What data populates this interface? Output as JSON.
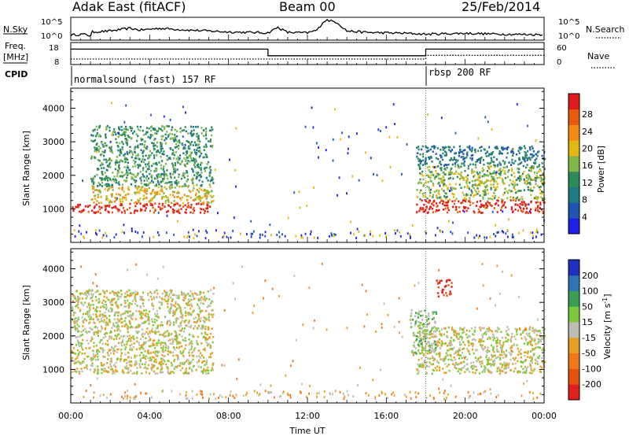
{
  "header": {
    "station": "Adak East (fitACF)",
    "beam": "Beam 00",
    "date": "25/Feb/2014"
  },
  "labels": {
    "nsky": "N.Sky",
    "nsearch": "N.Search",
    "freq": "Freq.",
    "mhz": "[MHz]",
    "nave": "Nave",
    "cpid": "CPID",
    "noise_ticks": [
      "10^5",
      "10^0"
    ],
    "freq_ticks": [
      "18",
      "8"
    ],
    "nave_ticks": [
      "60",
      "0"
    ],
    "cpid_programs": [
      "normalsound (fast) 157 RF",
      "rbsp 200 RF"
    ]
  },
  "colors": {
    "power": [
      "#1e1ee6",
      "#2155b4",
      "#1f7a82",
      "#2f8a5a",
      "#7fb84a",
      "#e3b814",
      "#f28a14",
      "#e85a0e",
      "#e01a1a"
    ],
    "velocity": [
      "#1f2fbe",
      "#2d74b0",
      "#3a9e52",
      "#7fca3c",
      "#bdbdb2",
      "#e8a020",
      "#f07818",
      "#e85010",
      "#e0201c"
    ]
  },
  "chart_data": [
    {
      "type": "line",
      "title": "N.Sky / N.Search noise",
      "ylim": [
        "10^0",
        "10^5"
      ],
      "series": [
        {
          "name": "N.Sky",
          "x": [
            0,
            0.6,
            1.0,
            1.1,
            2.0,
            3.0,
            3.5,
            4.5,
            6.0,
            7.0,
            8.0,
            10.0,
            10.5,
            11.0,
            12.0,
            12.5,
            12.8,
            13.0,
            13.2,
            13.5,
            14.0,
            15.0,
            16.0,
            17.0,
            18.0,
            20.0,
            22.0,
            24.0
          ],
          "y": [
            1.1,
            1.3,
            1.0,
            1.8,
            2.0,
            2.6,
            2.2,
            2.6,
            2.2,
            2.0,
            1.8,
            1.6,
            2.8,
            1.7,
            1.6,
            2.2,
            4.0,
            4.4,
            4.2,
            3.9,
            2.0,
            1.7,
            1.6,
            1.5,
            1.3,
            1.5,
            1.3,
            1.2
          ]
        }
      ]
    },
    {
      "type": "line",
      "title": "Frequency and Nave",
      "ylim_freq": [
        8,
        18
      ],
      "ylim_nave": [
        0,
        60
      ],
      "series": [
        {
          "name": "Freq.",
          "x": [
            0,
            10,
            10,
            18,
            18,
            24
          ],
          "y": [
            15,
            15,
            12,
            12,
            15,
            15
          ]
        },
        {
          "name": "Nave",
          "x": [
            0,
            10,
            10,
            18,
            18,
            24
          ],
          "y": [
            15,
            15,
            15,
            15,
            25,
            25
          ]
        }
      ]
    },
    {
      "type": "heatmap",
      "title": "Power",
      "xlabel": "",
      "ylabel": "Slant Range [km]",
      "xlim": [
        0,
        24
      ],
      "ylim": [
        0,
        4600
      ],
      "x_ticks": [
        "00:00",
        "04:00",
        "08:00",
        "12:00",
        "16:00",
        "20:00",
        "00:00"
      ],
      "y_ticks": [
        1000,
        2000,
        3000,
        4000
      ],
      "colorbar": {
        "label": "Power [dB]",
        "ticks": [
          4,
          8,
          12,
          16,
          20,
          24,
          28
        ]
      },
      "echo_bands": [
        {
          "t0": 0.0,
          "t1": 7.2,
          "r0": 900,
          "r1": 1200,
          "level": 8
        },
        {
          "t0": 1.0,
          "t1": 7.2,
          "r0": 1200,
          "r1": 1700,
          "level": 5
        },
        {
          "t0": 1.0,
          "t1": 7.2,
          "r0": 1700,
          "r1": 3500,
          "level": 3
        },
        {
          "t0": 17.5,
          "t1": 24.0,
          "r0": 900,
          "r1": 1300,
          "level": 8
        },
        {
          "t0": 17.5,
          "t1": 24.0,
          "r0": 1300,
          "r1": 2300,
          "level": 4
        },
        {
          "t0": 17.5,
          "t1": 24.0,
          "r0": 2300,
          "r1": 2900,
          "level": 2
        }
      ]
    },
    {
      "type": "heatmap",
      "title": "Velocity",
      "xlabel": "Time UT",
      "ylabel": "Slant Range [km]",
      "xlim": [
        0,
        24
      ],
      "ylim": [
        0,
        4600
      ],
      "x_ticks": [
        "00:00",
        "04:00",
        "08:00",
        "12:00",
        "16:00",
        "20:00",
        "00:00"
      ],
      "y_ticks": [
        1000,
        2000,
        3000,
        4000
      ],
      "colorbar": {
        "label": "Velocity [m s^-1]",
        "ticks": [
          200,
          100,
          50,
          15,
          -15,
          -50,
          -100,
          -200
        ]
      },
      "echo_bands": [
        {
          "t0": 0.0,
          "t1": 7.2,
          "r0": 900,
          "r1": 3400,
          "level": 4
        },
        {
          "t0": 17.5,
          "t1": 24.0,
          "r0": 900,
          "r1": 2300,
          "level": 4
        },
        {
          "t0": 17.2,
          "t1": 18.5,
          "r0": 1500,
          "r1": 2800,
          "level": 3
        },
        {
          "t0": 18.5,
          "t1": 19.3,
          "r0": 3200,
          "r1": 3700,
          "level": 8
        }
      ]
    }
  ],
  "axes": {
    "x_label": "Time UT"
  }
}
